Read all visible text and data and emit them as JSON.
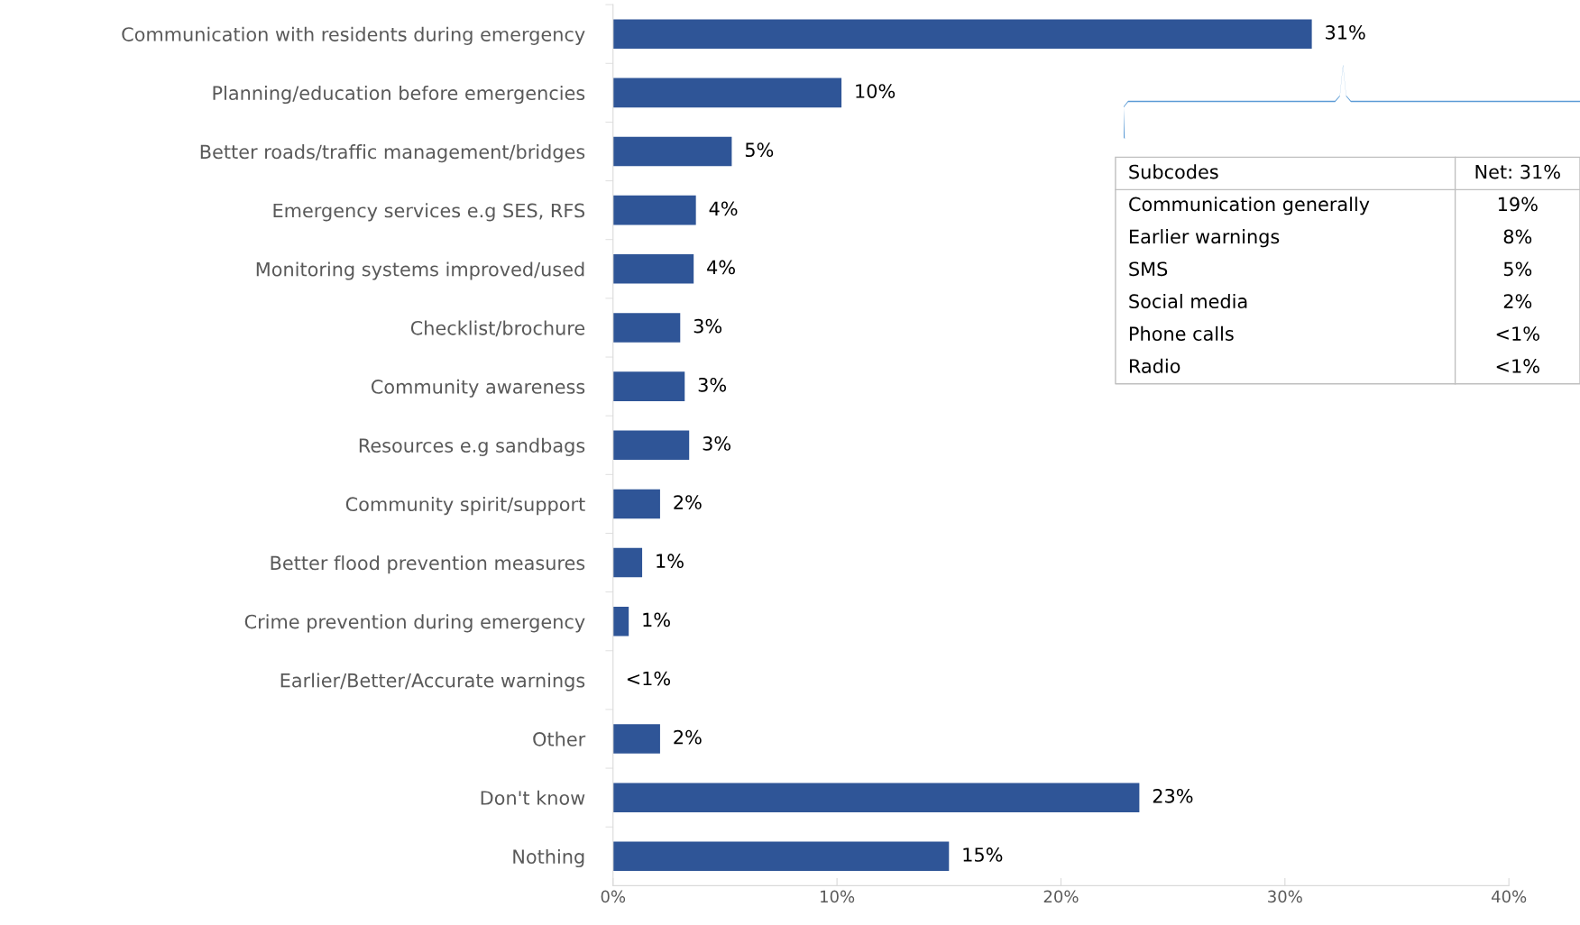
{
  "chart_data": {
    "type": "bar",
    "orientation": "horizontal",
    "categories": [
      "Communication with residents during emergency",
      "Planning/education before emergencies",
      "Better roads/traffic management/bridges",
      "Emergency services e.g SES, RFS",
      "Monitoring systems improved/used",
      "Checklist/brochure",
      "Community awareness",
      "Resources e.g sandbags",
      "Community spirit/support",
      "Better flood prevention measures",
      "Crime prevention during emergency",
      "Earlier/Better/Accurate warnings",
      "Other",
      "Don't know",
      "Nothing"
    ],
    "values": [
      31.2,
      10.2,
      5.3,
      3.7,
      3.6,
      3.0,
      3.2,
      3.4,
      2.1,
      1.3,
      0.7,
      0,
      2.1,
      23.5,
      15.0
    ],
    "value_labels": [
      "31%",
      "10%",
      "5%",
      "4%",
      "4%",
      "3%",
      "3%",
      "3%",
      "2%",
      "1%",
      "1%",
      "<1%",
      "2%",
      "23%",
      "15%"
    ],
    "color": "#2f5597",
    "xlim": [
      0,
      40
    ],
    "xticks": [
      {
        "value": 0,
        "label": "0%"
      },
      {
        "value": 10,
        "label": "10%"
      },
      {
        "value": 20,
        "label": "20%"
      },
      {
        "value": 30,
        "label": "30%"
      },
      {
        "value": 40,
        "label": "40%"
      }
    ],
    "grid": false,
    "legend": false,
    "annotations": [
      "Subcodes",
      "Net: 31%",
      "Communication generally",
      "19%",
      "Earlier warnings",
      "8%",
      "SMS",
      "5%",
      "Social media",
      "2%",
      "Phone calls",
      "<1%",
      "Radio",
      "<1%"
    ]
  }
}
